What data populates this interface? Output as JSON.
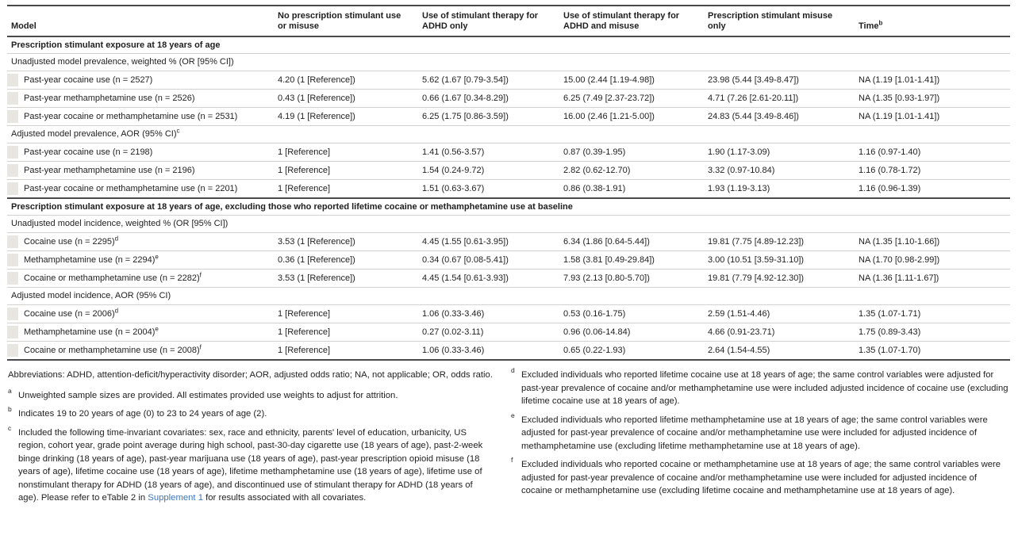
{
  "colors": {
    "rule_dark": "#4a4a4c",
    "rule_light": "#d4d2ce",
    "indent_square": "#e8e6e1",
    "link_blue": "#3e74ba",
    "text": "#1f1f1f"
  },
  "table": {
    "columns": [
      {
        "label": "Model",
        "sup": ""
      },
      {
        "label": "No prescription stimulant use or misuse",
        "sup": ""
      },
      {
        "label": "Use of stimulant therapy for ADHD only",
        "sup": ""
      },
      {
        "label": "Use of stimulant therapy for ADHD and misuse",
        "sup": ""
      },
      {
        "label": "Prescription stimulant misuse only",
        "sup": ""
      },
      {
        "label": "Time",
        "sup": "b"
      }
    ],
    "sections": [
      {
        "header": "Prescription stimulant exposure at 18 years of age",
        "subsections": [
          {
            "label": "Unadjusted model prevalence, weighted % (OR [95% CI])",
            "sup": "",
            "rows": [
              {
                "label": "Past-year cocaine use (n = 2527)",
                "sup": "",
                "values": [
                  "4.20 (1 [Reference])",
                  "5.62 (1.67 [0.79-3.54])",
                  "15.00 (2.44 [1.19-4.98])",
                  "23.98 (5.44 [3.49-8.47])",
                  "NA (1.19 [1.01-1.41])"
                ]
              },
              {
                "label": "Past-year methamphetamine use (n = 2526)",
                "sup": "",
                "values": [
                  "0.43 (1 [Reference])",
                  "0.66 (1.67 [0.34-8.29])",
                  "6.25 (7.49 [2.37-23.72])",
                  "4.71 (7.26 [2.61-20.11])",
                  "NA (1.35 [0.93-1.97])"
                ]
              },
              {
                "label": "Past-year cocaine or methamphetamine use (n = 2531)",
                "sup": "",
                "values": [
                  "4.19 (1 [Reference])",
                  "6.25 (1.75 [0.86-3.59])",
                  "16.00 (2.46 [1.21-5.00])",
                  "24.83 (5.44 [3.49-8.46])",
                  "NA (1.19 [1.01-1.41])"
                ]
              }
            ]
          },
          {
            "label": "Adjusted model prevalence, AOR (95% CI)",
            "sup": "c",
            "rows": [
              {
                "label": "Past-year cocaine use (n = 2198)",
                "sup": "",
                "values": [
                  "1 [Reference]",
                  "1.41 (0.56-3.57)",
                  "0.87 (0.39-1.95)",
                  "1.90 (1.17-3.09)",
                  "1.16 (0.97-1.40)"
                ]
              },
              {
                "label": "Past-year methamphetamine use (n = 2196)",
                "sup": "",
                "values": [
                  "1 [Reference]",
                  "1.54 (0.24-9.72)",
                  "2.82 (0.62-12.70)",
                  "3.32 (0.97-10.84)",
                  "1.16 (0.78-1.72)"
                ]
              },
              {
                "label": "Past-year cocaine or methamphetamine use (n = 2201)",
                "sup": "",
                "values": [
                  "1 [Reference]",
                  "1.51 (0.63-3.67)",
                  "0.86 (0.38-1.91)",
                  "1.93 (1.19-3.13)",
                  "1.16 (0.96-1.39)"
                ]
              }
            ]
          }
        ]
      },
      {
        "header": "Prescription stimulant exposure at 18 years of age, excluding those who reported lifetime cocaine or methamphetamine use at baseline",
        "subsections": [
          {
            "label": "Unadjusted model incidence, weighted % (OR [95% CI])",
            "sup": "",
            "rows": [
              {
                "label": "Cocaine use (n = 2295)",
                "sup": "d",
                "values": [
                  "3.53 (1 [Reference])",
                  "4.45 (1.55 [0.61-3.95])",
                  "6.34 (1.86 [0.64-5.44])",
                  "19.81 (7.75 [4.89-12.23])",
                  "NA (1.35 [1.10-1.66])"
                ]
              },
              {
                "label": "Methamphetamine use (n = 2294)",
                "sup": "e",
                "values": [
                  "0.36 (1 [Reference])",
                  "0.34 (0.67 [0.08-5.41])",
                  "1.58 (3.81 [0.49-29.84])",
                  "3.00 (10.51 [3.59-31.10])",
                  "NA (1.70 [0.98-2.99])"
                ]
              },
              {
                "label": "Cocaine or methamphetamine use (n = 2282)",
                "sup": "f",
                "values": [
                  "3.53 (1 [Reference])",
                  "4.45 (1.54 [0.61-3.93])",
                  "7.93 (2.13 [0.80-5.70])",
                  "19.81 (7.79 [4.92-12.30])",
                  "NA (1.36 [1.11-1.67])"
                ]
              }
            ]
          },
          {
            "label": "Adjusted model incidence, AOR (95% CI)",
            "sup": "",
            "rows": [
              {
                "label": "Cocaine use (n = 2006)",
                "sup": "d",
                "values": [
                  "1 [Reference]",
                  "1.06 (0.33-3.46)",
                  "0.53 (0.16-1.75)",
                  "2.59 (1.51-4.46)",
                  "1.35 (1.07-1.71)"
                ]
              },
              {
                "label": "Methamphetamine use (n = 2004)",
                "sup": "e",
                "values": [
                  "1 [Reference]",
                  "0.27 (0.02-3.11)",
                  "0.96 (0.06-14.84)",
                  "4.66 (0.91-23.71)",
                  "1.75 (0.89-3.43)"
                ]
              },
              {
                "label": "Cocaine or methamphetamine use (n = 2008)",
                "sup": "f",
                "values": [
                  "1 [Reference]",
                  "1.06 (0.33-3.46)",
                  "0.65 (0.22-1.93)",
                  "2.64 (1.54-4.55)",
                  "1.35 (1.07-1.70)"
                ]
              }
            ]
          }
        ]
      }
    ]
  },
  "footnotes": {
    "left": [
      {
        "marker": "",
        "text": "Abbreviations: ADHD, attention-deficit/hyperactivity disorder; AOR, adjusted odds ratio; NA, not applicable; OR, odds ratio."
      },
      {
        "marker": "a",
        "text": "Unweighted sample sizes are provided. All estimates provided use weights to adjust for attrition."
      },
      {
        "marker": "b",
        "text": "Indicates 19 to 20 years of age (0) to 23 to 24 years of age (2)."
      },
      {
        "marker": "c",
        "text": "Included the following time-invariant covariates: sex, race and ethnicity, parents' level of education, urbanicity, US region, cohort year, grade point average during high school, past-30-day cigarette use (18 years of age), past-2-week binge drinking (18 years of age), past-year marijuana use (18 years of age), past-year prescription opioid misuse (18 years of age), lifetime cocaine use (18 years of age), lifetime methamphetamine use (18 years of age), lifetime use of nonstimulant therapy for ADHD (18 years of age), and discontinued use of stimulant therapy for ADHD (18 years of age). Please refer to eTable 2 in ",
        "link": "Supplement 1",
        "text_after": " for results associated with all covariates."
      }
    ],
    "right": [
      {
        "marker": "d",
        "text": "Excluded individuals who reported lifetime cocaine use at 18 years of age; the same control variables were adjusted for past-year prevalence of cocaine and/or methamphetamine use were included adjusted incidence of cocaine use (excluding lifetime cocaine use at 18 years of age)."
      },
      {
        "marker": "e",
        "text": "Excluded individuals who reported lifetime methamphetamine use at 18 years of age; the same control variables were adjusted for past-year prevalence of cocaine and/or methamphetamine use were included for adjusted incidence of methamphetamine use (excluding lifetime methamphetamine use at 18 years of age)."
      },
      {
        "marker": "f",
        "text": "Excluded individuals who reported cocaine or methamphetamine use at 18 years of age; the same control variables were adjusted for past-year prevalence of cocaine and/or methamphetamine use were included for adjusted incidence of cocaine or methamphetamine use (excluding lifetime cocaine and methamphetamine use at 18 years of age)."
      }
    ]
  }
}
